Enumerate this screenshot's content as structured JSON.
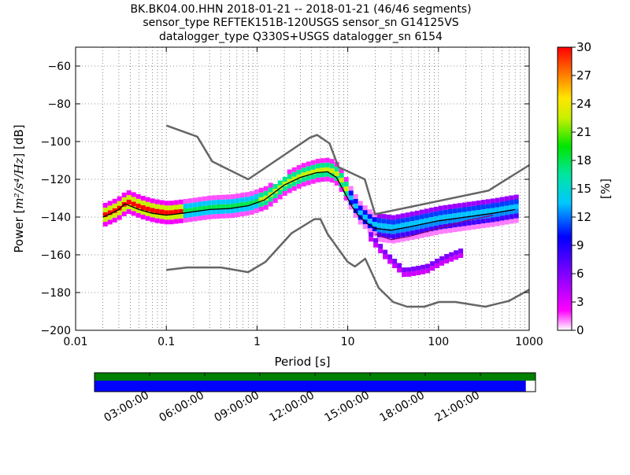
{
  "chart_data": {
    "type": "heatmap",
    "title_lines": [
      "BK.BK04.00.HHN   2018-01-21 -- 2018-01-21  (46/46 segments)",
      "sensor_type REFTEK151B-120USGS sensor_sn G14125VS",
      "datalogger_type Q330S+USGS datalogger_sn 6154"
    ],
    "xlabel": "Period [s]",
    "ylabel_prefix": "Power [",
    "ylabel_math": "m²/s⁴/Hz",
    "ylabel_suffix": "] [dB]",
    "xscale": "log",
    "xlim": [
      0.01,
      1000
    ],
    "ylim": [
      -200,
      -50
    ],
    "xticks": [
      {
        "v": 0.01,
        "label": "0.01"
      },
      {
        "v": 0.1,
        "label": "0.1"
      },
      {
        "v": 1,
        "label": "1"
      },
      {
        "v": 10,
        "label": "10"
      },
      {
        "v": 100,
        "label": "100"
      },
      {
        "v": 1000,
        "label": "1000"
      }
    ],
    "yticks": [
      -200,
      -180,
      -160,
      -140,
      -120,
      -100,
      -80,
      -60
    ],
    "grid": true,
    "colorbar": {
      "label": "[%]",
      "range": [
        0,
        30
      ],
      "ticks": [
        0,
        3,
        6,
        9,
        12,
        15,
        18,
        21,
        24,
        27,
        30
      ],
      "colormap": "pqlx"
    },
    "nhnm": {
      "name": "NHNM",
      "color": "#666666",
      "x": [
        0.1,
        0.22,
        0.32,
        0.8,
        3.8,
        4.6,
        6.3,
        7.9,
        15.4,
        20,
        354.8,
        1000
      ],
      "y": [
        -91.5,
        -97.4,
        -110.5,
        -120.0,
        -98.0,
        -96.5,
        -101.0,
        -113.5,
        -120.0,
        -138.5,
        -126.0,
        -112.5
      ]
    },
    "nlnm": {
      "name": "NLNM",
      "color": "#666666",
      "x": [
        0.1,
        0.17,
        0.4,
        0.8,
        1.24,
        2.4,
        4.3,
        5.0,
        6.0,
        10.0,
        12.0,
        15.6,
        21.9,
        31.6,
        45.0,
        70.0,
        101.0,
        154.0,
        328.0,
        600.0,
        1000.0
      ],
      "y": [
        -168.0,
        -166.7,
        -166.7,
        -169.2,
        -163.7,
        -148.6,
        -141.1,
        -141.1,
        -149.0,
        -163.8,
        -166.2,
        -162.1,
        -177.5,
        -185.0,
        -187.5,
        -187.5,
        -185.0,
        -185.0,
        -187.5,
        -184.4,
        -178.5
      ]
    },
    "mode_series": {
      "name": "mode",
      "color": "#000000",
      "x": [
        0.02,
        0.025,
        0.03,
        0.035,
        0.05,
        0.07,
        0.1,
        0.15,
        0.3,
        0.5,
        0.8,
        1.2,
        2.0,
        3.0,
        4.5,
        6.0,
        7.5,
        9.0,
        11.0,
        13.0,
        16.0,
        20.0,
        30.0,
        50.0,
        100.0,
        200.0,
        400.0,
        700.0
      ],
      "y": [
        -140.0,
        -138.0,
        -136.0,
        -133.0,
        -136.0,
        -138.0,
        -139.0,
        -138.0,
        -136.0,
        -135.5,
        -134.0,
        -131.0,
        -123.0,
        -119.0,
        -116.5,
        -116.0,
        -119.0,
        -126.0,
        -134.0,
        -139.0,
        -143.0,
        -146.0,
        -147.0,
        -145.0,
        -142.0,
        -140.0,
        -138.0,
        -136.0
      ]
    },
    "secondary_series": {
      "name": "secondary",
      "color": "#800080",
      "x": [
        20.0,
        30.0,
        50.0,
        100.0,
        200.0,
        400.0
      ],
      "y": [
        -149.0,
        -152.0,
        -150.0,
        -146.0,
        -142.0,
        -139.0
      ]
    },
    "density": {
      "description_bands": [
        {
          "x": [
            0.02,
            20
          ],
          "center_ref": "mode",
          "halfwidth_db": 5
        },
        {
          "x": [
            20,
            1000
          ],
          "center_ref": "mode",
          "halfwidth_db": 7
        }
      ],
      "lower_branch": {
        "x": [
          17.0,
          25.0,
          40.0,
          70.0,
          110.0,
          180.0
        ],
        "y": [
          -153.0,
          -163.0,
          -172.0,
          -170.0,
          -165.0,
          -161.0
        ]
      }
    }
  },
  "timeline": {
    "ticks": [
      "03:00:00",
      "06:00:00",
      "09:00:00",
      "12:00:00",
      "15:00:00",
      "18:00:00",
      "21:00:00"
    ],
    "data_coverage_color": "#008000",
    "segment_coverage_color": "#0000ff",
    "segment_coverage_fraction": 0.978
  }
}
